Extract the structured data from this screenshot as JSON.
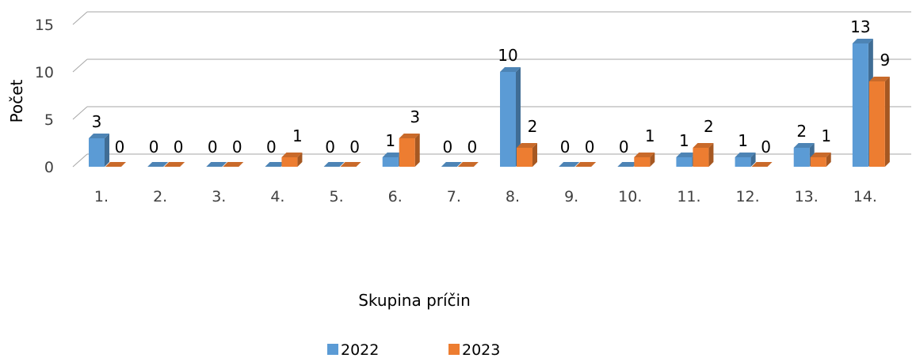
{
  "chart_data": {
    "type": "bar",
    "categories": [
      "1.",
      "2.",
      "3.",
      "4.",
      "5.",
      "6.",
      "7.",
      "8.",
      "9.",
      "10.",
      "11.",
      "12.",
      "13.",
      "14."
    ],
    "series": [
      {
        "name": "2022",
        "color": "#5b9bd5",
        "values": [
          3,
          0,
          0,
          0,
          0,
          1,
          0,
          10,
          0,
          0,
          1,
          1,
          2,
          13
        ]
      },
      {
        "name": "2023",
        "color": "#ed7d31",
        "values": [
          0,
          0,
          0,
          1,
          0,
          3,
          0,
          2,
          0,
          1,
          2,
          0,
          1,
          9
        ]
      }
    ],
    "xlabel": "Skupina príčin",
    "ylabel": "Počet",
    "ylim": [
      0,
      15
    ],
    "yticks": [
      0,
      5,
      10,
      15
    ],
    "grid": true,
    "legend_position": "bottom",
    "style": "3d-clustered-column"
  }
}
